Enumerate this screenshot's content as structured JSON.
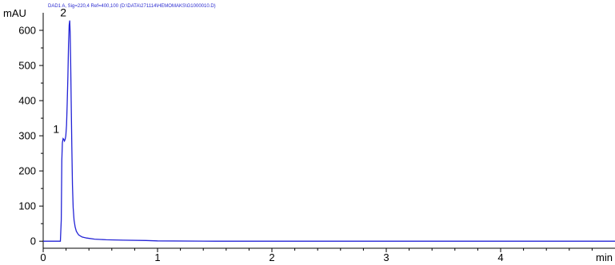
{
  "colors": {
    "trace": "#2323d6",
    "axis": "#000000",
    "header": "#2a2ad0",
    "background": "#ffffff"
  },
  "chart_data": {
    "type": "line",
    "title": "DAD1 A, Sig=220,4 Ref=400,100 (D:\\DATA\\271114\\HEMOMAKS\\G1000010.D)",
    "xlabel": "min",
    "ylabel": "mAU",
    "xlim": [
      0,
      5.0
    ],
    "ylim": [
      -20,
      650
    ],
    "x_ticks": [
      0,
      1,
      2,
      3,
      4
    ],
    "x_tick_labels": [
      "0",
      "1",
      "2",
      "3",
      "4"
    ],
    "y_ticks": [
      0,
      100,
      200,
      300,
      400,
      500,
      600
    ],
    "y_tick_labels": [
      "0",
      "100",
      "200",
      "300",
      "400",
      "500",
      "600"
    ],
    "grid": false,
    "series": [
      {
        "x": [
          0.0,
          0.1,
          0.15,
          0.158,
          0.163,
          0.168,
          0.174,
          0.18,
          0.186,
          0.192,
          0.198,
          0.204,
          0.21,
          0.216,
          0.222,
          0.227,
          0.232,
          0.236,
          0.24,
          0.245,
          0.25,
          0.256,
          0.262,
          0.27,
          0.28,
          0.29,
          0.31,
          0.34,
          0.38,
          0.45,
          0.55,
          0.7,
          0.9,
          1.0,
          1.5,
          2.0,
          3.0,
          4.0,
          5.0
        ],
        "y": [
          0,
          0,
          0,
          60,
          230,
          280,
          292,
          290,
          285,
          290,
          300,
          330,
          390,
          470,
          560,
          615,
          628,
          595,
          520,
          400,
          270,
          160,
          95,
          60,
          40,
          28,
          18,
          12,
          9,
          6,
          4,
          3,
          2,
          1,
          0,
          0,
          0,
          0,
          0
        ]
      }
    ],
    "annotations": [
      {
        "text": "1",
        "x": 0.17,
        "y": 297
      },
      {
        "text": "2",
        "x": 0.232,
        "y": 628
      }
    ]
  }
}
